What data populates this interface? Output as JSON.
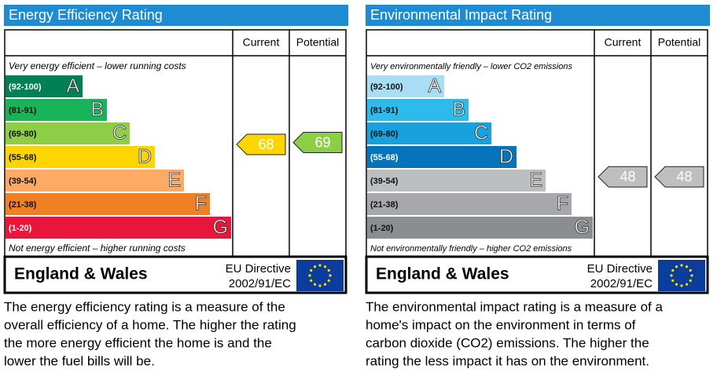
{
  "panels": [
    {
      "title": "Energy Efficiency Rating",
      "headers": [
        "Current",
        "Potential"
      ],
      "top_note": "Very energy efficient – lower running costs",
      "bottom_note": "Not energy efficient – higher running costs",
      "bands": [
        {
          "range": "(92-100)",
          "letter": "A",
          "color": "#008054"
        },
        {
          "range": "(81-91)",
          "letter": "B",
          "color": "#19b459"
        },
        {
          "range": "(69-80)",
          "letter": "C",
          "color": "#8dce46"
        },
        {
          "range": "(55-68)",
          "letter": "D",
          "color": "#ffd500"
        },
        {
          "range": "(39-54)",
          "letter": "E",
          "color": "#fcaa65"
        },
        {
          "range": "(21-38)",
          "letter": "F",
          "color": "#ef8023"
        },
        {
          "range": "(1-20)",
          "letter": "G",
          "color": "#e9153b"
        }
      ],
      "current": 68,
      "potential": 69,
      "region": "England & Wales",
      "directive": "EU Directive",
      "code": "2002/91/EC",
      "description": [
        "The energy efficiency rating is a measure of the",
        "overall efficiency of a home.  The higher the rating",
        "the more energy efficient the home is and the",
        "lower the fuel bills will be."
      ]
    },
    {
      "title": "Environmental Impact Rating",
      "headers": [
        "Current",
        "Potential"
      ],
      "top_note": "Very environmentally friendly – lower CO2 emissions",
      "bottom_note": "Not environmentally friendly – higher CO2 emissions",
      "bands": [
        {
          "range": "(92-100)",
          "letter": "A",
          "color": "#a9dcf5"
        },
        {
          "range": "(81-91)",
          "letter": "B",
          "color": "#2cbbeb"
        },
        {
          "range": "(69-80)",
          "letter": "C",
          "color": "#18a2dd"
        },
        {
          "range": "(55-68)",
          "letter": "D",
          "color": "#0673bb"
        },
        {
          "range": "(39-54)",
          "letter": "E",
          "color": "#bcbec0"
        },
        {
          "range": "(21-38)",
          "letter": "F",
          "color": "#a6a8ab"
        },
        {
          "range": "(1-20)",
          "letter": "G",
          "color": "#8b8d8f"
        }
      ],
      "current": 48,
      "potential": 48,
      "region": "England & Wales",
      "directive": "EU Directive",
      "code": "2002/91/EC",
      "description": [
        "The environmental impact rating is a measure of a",
        "home's impact on the environment in terms of",
        "carbon dioxide (CO2) emissions.  The higher the",
        "rating the less impact it has on the environment."
      ]
    }
  ]
}
